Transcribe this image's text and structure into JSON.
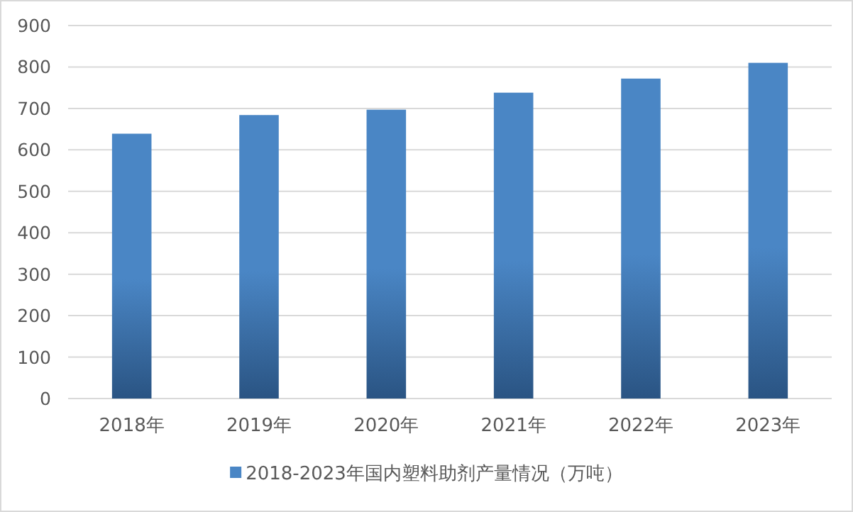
{
  "chart_data": {
    "type": "bar",
    "categories": [
      "2018年",
      "2019年",
      "2020年",
      "2021年",
      "2022年",
      "2023年"
    ],
    "series": [
      {
        "name": "2018-2023年国内塑料助剂产量情况（万吨）",
        "color": "#4a86c5",
        "values": [
          639,
          684,
          697,
          738,
          772,
          810
        ]
      }
    ],
    "ylim": [
      0,
      900
    ],
    "yticks": [
      0,
      100,
      200,
      300,
      400,
      500,
      600,
      700,
      800,
      900
    ],
    "grid": "y",
    "legend": "bottom"
  }
}
